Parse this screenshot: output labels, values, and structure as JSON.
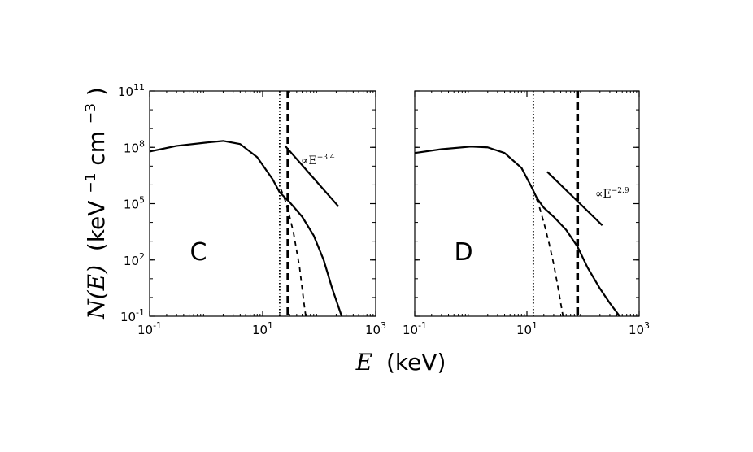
{
  "figure": {
    "xlabel_symbol": "E",
    "xlabel_unit": "(keV)",
    "ylabel_symbol": "N(E)",
    "ylabel_unit_a": "(keV",
    "ylabel_exp_a": "−1",
    "ylabel_unit_b": " cm",
    "ylabel_exp_b": "−3",
    "ylabel_close": ")"
  },
  "chart_data": [
    {
      "type": "line",
      "panel_label": "C",
      "xscale": "log",
      "yscale": "log",
      "xlim": [
        0.1,
        1000
      ],
      "ylim": [
        0.1,
        100000000000.0
      ],
      "x_ticks": [
        {
          "base": "10",
          "exp": "-1",
          "value": 0.1
        },
        {
          "base": "10",
          "exp": "1",
          "value": 10
        },
        {
          "base": "10",
          "exp": "3",
          "value": 1000
        }
      ],
      "y_ticks": [
        {
          "base": "10",
          "exp": "-1",
          "value": 0.1
        },
        {
          "base": "10",
          "exp": "2",
          "value": 100
        },
        {
          "base": "10",
          "exp": "5",
          "value": 100000
        },
        {
          "base": "10",
          "exp": "8",
          "value": 100000000
        },
        {
          "base": "10",
          "exp": "11",
          "value": 100000000000
        }
      ],
      "annotation": {
        "text": "∝E",
        "exp": "−3.4"
      },
      "series": [
        {
          "style": "solid",
          "points": [
            [
              0.1,
              60000000.0
            ],
            [
              0.3,
              120000000.0
            ],
            [
              1,
              180000000.0
            ],
            [
              2,
              220000000.0
            ],
            [
              4,
              150000000.0
            ],
            [
              8,
              30000000.0
            ],
            [
              15,
              2000000.0
            ],
            [
              20,
              400000.0
            ],
            [
              30,
              120000.0
            ],
            [
              50,
              20000.0
            ],
            [
              80,
              2000
            ],
            [
              120,
              100
            ],
            [
              170,
              3
            ],
            [
              250,
              0.1
            ]
          ]
        },
        {
          "style": "dashed",
          "points": [
            [
              21,
              600000.0
            ],
            [
              25,
              150000.0
            ],
            [
              30,
              20000.0
            ],
            [
              35,
              3000
            ],
            [
              40,
              300
            ],
            [
              45,
              40
            ],
            [
              50,
              3
            ],
            [
              55,
              0.3
            ],
            [
              58,
              0.1
            ]
          ]
        },
        {
          "style": "solid-powerlaw",
          "points": [
            [
              25,
              120000000.0
            ],
            [
              220,
              70000.0
            ]
          ]
        },
        {
          "style": "dotted-vline",
          "x": 20
        },
        {
          "style": "dashed-vline-thick",
          "x": 28
        }
      ]
    },
    {
      "type": "line",
      "panel_label": "D",
      "xscale": "log",
      "yscale": "log",
      "xlim": [
        0.1,
        1000
      ],
      "ylim": [
        0.1,
        100000000000.0
      ],
      "x_ticks": [
        {
          "base": "10",
          "exp": "-1",
          "value": 0.1
        },
        {
          "base": "10",
          "exp": "1",
          "value": 10
        },
        {
          "base": "10",
          "exp": "3",
          "value": 1000
        }
      ],
      "y_ticks": [
        {
          "base": "10",
          "exp": "-1",
          "value": 0.1
        },
        {
          "base": "10",
          "exp": "2",
          "value": 100
        },
        {
          "base": "10",
          "exp": "5",
          "value": 100000
        },
        {
          "base": "10",
          "exp": "8",
          "value": 100000000
        },
        {
          "base": "10",
          "exp": "11",
          "value": 100000000000
        }
      ],
      "annotation": {
        "text": "∝E",
        "exp": "−2.9"
      },
      "series": [
        {
          "style": "solid",
          "points": [
            [
              0.1,
              50000000.0
            ],
            [
              0.3,
              80000000.0
            ],
            [
              1,
              110000000.0
            ],
            [
              2,
              100000000.0
            ],
            [
              4,
              50000000.0
            ],
            [
              8,
              8000000.0
            ],
            [
              12,
              800000.0
            ],
            [
              15,
              200000.0
            ],
            [
              20,
              60000.0
            ],
            [
              30,
              20000.0
            ],
            [
              50,
              4000
            ],
            [
              80,
              500
            ],
            [
              120,
              40
            ],
            [
              200,
              3
            ],
            [
              300,
              0.5
            ],
            [
              450,
              0.1
            ]
          ]
        },
        {
          "style": "dashed",
          "points": [
            [
              13,
              500000.0
            ],
            [
              16,
              100000.0
            ],
            [
              20,
              10000.0
            ],
            [
              25,
              700
            ],
            [
              30,
              60
            ],
            [
              35,
              5
            ],
            [
              40,
              0.5
            ],
            [
              44,
              0.1
            ]
          ]
        },
        {
          "style": "solid-powerlaw",
          "points": [
            [
              23,
              5000000.0
            ],
            [
              220,
              7000.0
            ]
          ]
        },
        {
          "style": "dotted-vline",
          "x": 13
        },
        {
          "style": "dashed-vline-thick",
          "x": 80
        }
      ]
    }
  ]
}
